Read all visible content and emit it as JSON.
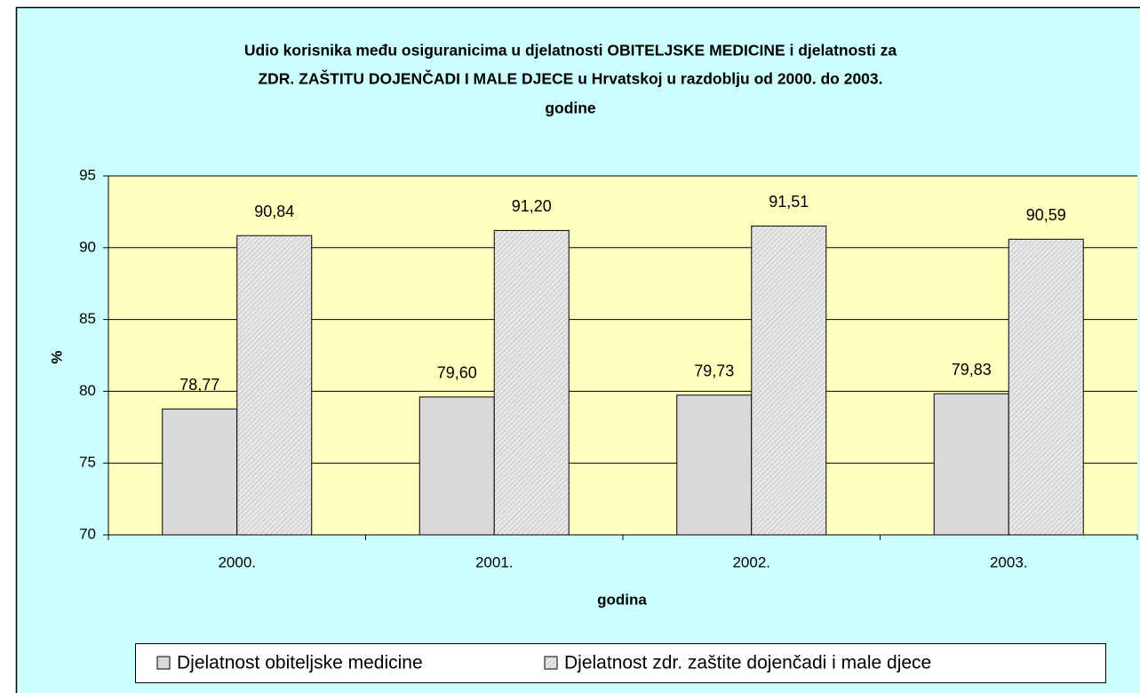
{
  "chart_data": {
    "type": "bar",
    "title": [
      "Udio korisnika među osiguranicima u djelatnosti OBITELJSKE MEDICINE i djelatnosti za",
      "ZDR. ZAŠTITU DOJENČADI I MALE DJECE u Hrvatskoj u razdoblju od 2000. do 2003.",
      "godine"
    ],
    "x_label": "godina",
    "y_label": "%",
    "categories": [
      "2000.",
      "2001.",
      "2002.",
      "2003."
    ],
    "series": [
      {
        "name": "Djelatnost obiteljske medicine",
        "color": "#d9d9d9",
        "values": [
          78.77,
          79.6,
          79.73,
          79.83
        ],
        "value_labels": [
          "78,77",
          "79,60",
          "79,73",
          "79,83"
        ]
      },
      {
        "name": "Djelatnost zdr. zaštite dojenčadi i male djece",
        "color": "#e4e4e4",
        "hatch": true,
        "values": [
          90.84,
          91.2,
          91.51,
          90.59
        ],
        "value_labels": [
          "90,84",
          "91,20",
          "91,51",
          "90,59"
        ]
      }
    ],
    "ylim": [
      70,
      95
    ],
    "yticks": [
      70,
      75,
      80,
      85,
      90,
      95
    ],
    "grid": true,
    "legend": "bottom"
  }
}
